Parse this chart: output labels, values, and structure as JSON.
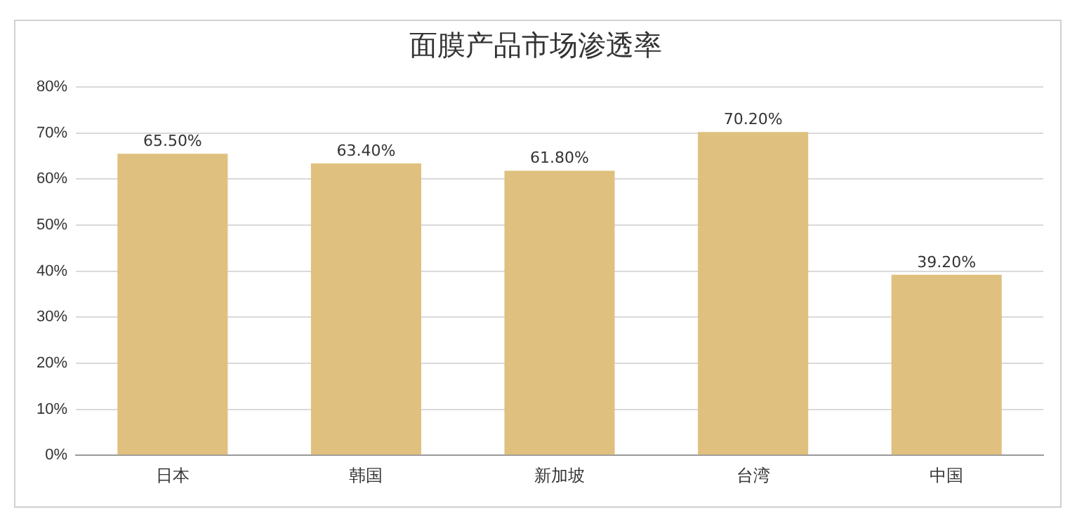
{
  "chart_data": {
    "type": "bar",
    "title": "面膜产品市场渗透率",
    "categories": [
      "日本",
      "韩国",
      "新加坡",
      "台湾",
      "中国"
    ],
    "values": [
      65.5,
      63.4,
      61.8,
      70.2,
      39.2
    ],
    "value_labels": [
      "65.50%",
      "63.40%",
      "61.80%",
      "70.20%",
      "39.20%"
    ],
    "color": "#dfc07e",
    "ylim": [
      0,
      80
    ],
    "yticks": [
      {
        "value": 0,
        "label": "0%"
      },
      {
        "value": 10,
        "label": "10%"
      },
      {
        "value": 20,
        "label": "20%"
      },
      {
        "value": 30,
        "label": "30%"
      },
      {
        "value": 40,
        "label": "40%"
      },
      {
        "value": 50,
        "label": "50%"
      },
      {
        "value": 60,
        "label": "60%"
      },
      {
        "value": 70,
        "label": "70%"
      },
      {
        "value": 80,
        "label": "80%"
      }
    ],
    "grid": "y",
    "legend": false
  }
}
